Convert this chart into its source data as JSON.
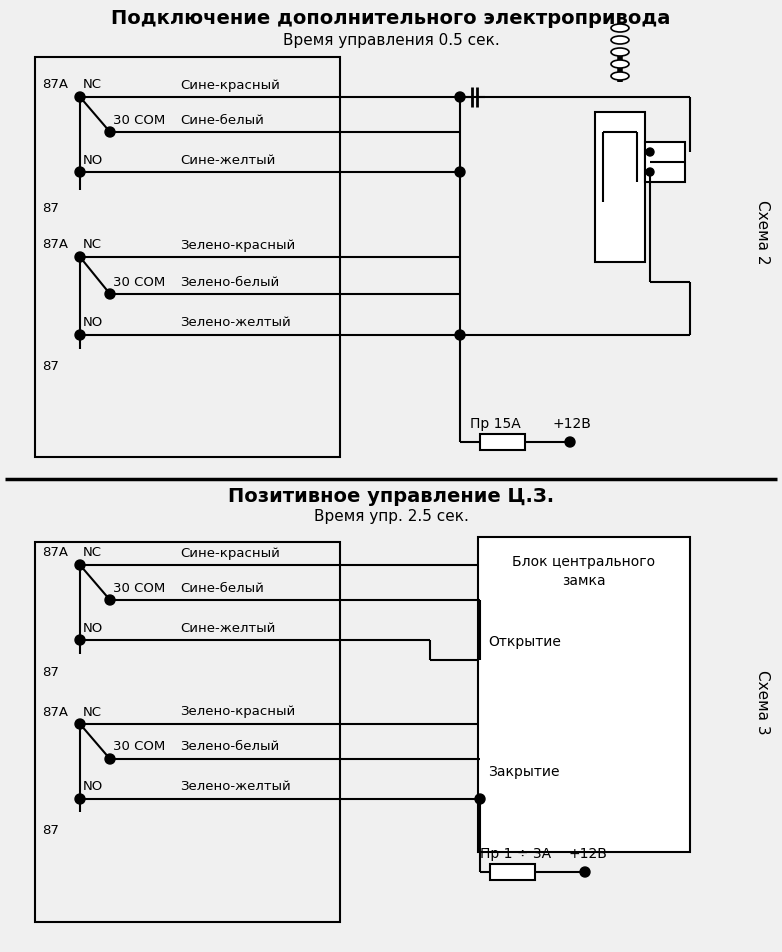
{
  "title1": "Подключение дополнительного электропривода",
  "subtitle1": "Время управления 0.5 сек.",
  "title2": "Позитивное управление Ц.З.",
  "subtitle2": "Время упр. 2.5 сек.",
  "schema_label1": "Схема 2",
  "schema_label2": "Схема 3",
  "bg_color": "#f0f0f0",
  "line_color": "#000000",
  "wire_labels_blue": [
    "Сине-красный",
    "Сине-белый",
    "Сине-желтый"
  ],
  "wire_labels_green": [
    "Зелено-красный",
    "Зелено-белый",
    "Зелено-желтый"
  ],
  "fuse_label1": "Пр 15А",
  "power_label1": "+12В",
  "fuse_label2": "Пр 1 ÷ 3А",
  "power_label2": "+12В",
  "block_label_line1": "Блок центрального",
  "block_label_line2": "замка",
  "open_label": "Открытие",
  "close_label": "Закрытие"
}
